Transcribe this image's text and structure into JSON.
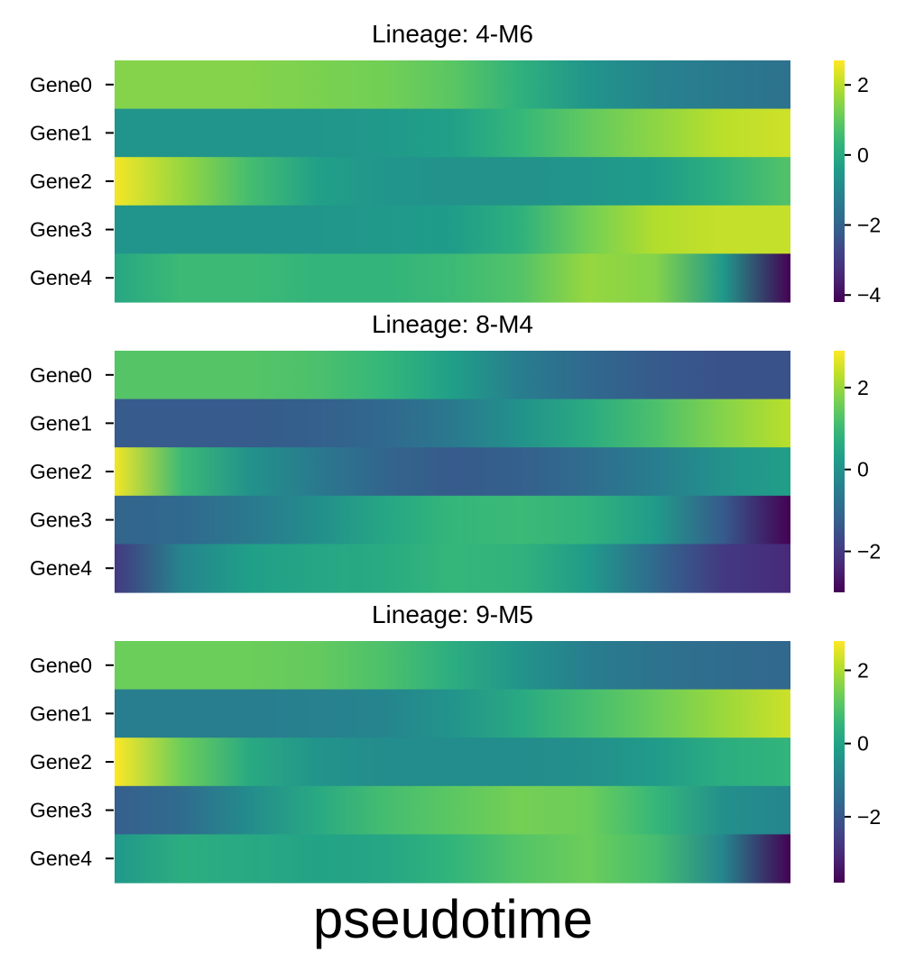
{
  "chart_data": [
    {
      "type": "heatmap",
      "title": "Lineage: 4-M6",
      "rows": [
        "Gene0",
        "Gene1",
        "Gene2",
        "Gene3",
        "Gene4"
      ],
      "x": [
        0,
        0.1,
        0.2,
        0.3,
        0.4,
        0.5,
        0.6,
        0.7,
        0.8,
        0.9,
        1.0
      ],
      "values": [
        [
          1.4,
          1.4,
          1.4,
          1.3,
          1.2,
          0.9,
          0.2,
          -0.6,
          -1.1,
          -1.4,
          -1.6
        ],
        [
          -0.6,
          -0.6,
          -0.6,
          -0.6,
          -0.5,
          -0.3,
          0.4,
          1.0,
          1.5,
          2.0,
          2.2
        ],
        [
          2.6,
          1.6,
          0.6,
          -0.3,
          -0.6,
          -0.7,
          -0.7,
          -0.6,
          -0.4,
          0.2,
          0.8
        ],
        [
          -0.6,
          -0.6,
          -0.6,
          -0.6,
          -0.5,
          -0.4,
          0.2,
          1.2,
          1.9,
          2.1,
          2.1
        ],
        [
          -0.1,
          0.5,
          0.5,
          0.3,
          0.3,
          0.5,
          0.8,
          1.6,
          1.4,
          -0.5,
          -4.2
        ]
      ],
      "colorbar": {
        "ticks": [
          2,
          0,
          -2,
          -4
        ],
        "range": [
          -4.2,
          2.7
        ]
      },
      "colormap": "viridis",
      "ylabel": "",
      "xlabel": ""
    },
    {
      "type": "heatmap",
      "title": "Lineage: 8-M4",
      "rows": [
        "Gene0",
        "Gene1",
        "Gene2",
        "Gene3",
        "Gene4"
      ],
      "x": [
        0,
        0.1,
        0.2,
        0.3,
        0.4,
        0.5,
        0.6,
        0.7,
        0.8,
        0.9,
        1.0
      ],
      "values": [
        [
          1.3,
          1.3,
          1.3,
          1.2,
          0.9,
          0.3,
          -0.5,
          -1.0,
          -1.3,
          -1.5,
          -1.5
        ],
        [
          -1.3,
          -1.3,
          -1.3,
          -1.2,
          -1.0,
          -0.6,
          0.0,
          0.6,
          1.2,
          1.8,
          2.3
        ],
        [
          2.8,
          1.0,
          0.0,
          -0.6,
          -1.1,
          -1.3,
          -1.2,
          -0.9,
          -0.5,
          0.0,
          0.3
        ],
        [
          -1.1,
          -1.0,
          -0.6,
          -0.1,
          0.5,
          0.9,
          1.0,
          0.8,
          0.2,
          -1.3,
          -3.0
        ],
        [
          -2.0,
          -0.3,
          0.3,
          0.5,
          0.6,
          0.9,
          0.8,
          0.2,
          -1.0,
          -2.0,
          -2.3
        ]
      ],
      "colorbar": {
        "ticks": [
          2,
          0,
          -2
        ],
        "range": [
          -3.0,
          2.9
        ]
      },
      "colormap": "viridis",
      "ylabel": "",
      "xlabel": ""
    },
    {
      "type": "heatmap",
      "title": "Lineage: 9-M5",
      "rows": [
        "Gene0",
        "Gene1",
        "Gene2",
        "Gene3",
        "Gene4"
      ],
      "x": [
        0,
        0.1,
        0.2,
        0.3,
        0.4,
        0.5,
        0.6,
        0.7,
        0.8,
        0.9,
        1.0
      ],
      "values": [
        [
          1.3,
          1.3,
          1.3,
          1.2,
          0.9,
          0.3,
          -0.4,
          -1.0,
          -1.3,
          -1.5,
          -1.6
        ],
        [
          -1.0,
          -1.0,
          -1.0,
          -0.9,
          -0.8,
          -0.4,
          0.2,
          0.8,
          1.3,
          1.8,
          2.3
        ],
        [
          2.8,
          1.3,
          0.2,
          -0.4,
          -0.6,
          -0.6,
          -0.6,
          -0.5,
          -0.2,
          0.3,
          0.5
        ],
        [
          -1.8,
          -1.5,
          -0.6,
          0.2,
          0.8,
          1.1,
          1.4,
          1.3,
          0.6,
          -0.5,
          -0.8
        ],
        [
          -0.3,
          0.3,
          0.2,
          0.0,
          0.1,
          0.5,
          1.0,
          1.3,
          0.8,
          -0.8,
          -3.8
        ]
      ],
      "colorbar": {
        "ticks": [
          2,
          0,
          -2
        ],
        "range": [
          -3.8,
          2.8
        ]
      },
      "colormap": "viridis",
      "ylabel": "",
      "xlabel": ""
    }
  ],
  "xlabel": "pseudotime"
}
